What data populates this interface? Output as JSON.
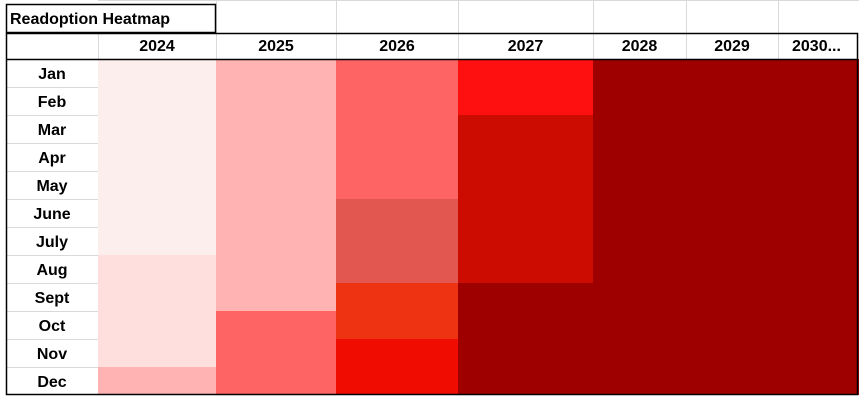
{
  "chart_data": {
    "type": "heatmap",
    "title": "Readoption Heatmap",
    "columns": [
      "2024",
      "2025",
      "2026",
      "2027",
      "2028",
      "2029",
      "2030..."
    ],
    "rows": [
      "Jan",
      "Feb",
      "Mar",
      "Apr",
      "May",
      "June",
      "July",
      "Aug",
      "Sept",
      "Oct",
      "Nov",
      "Dec"
    ],
    "cell_colors": [
      [
        "#fdeeee",
        "#ffb3b3",
        "#ff6464",
        "#ff1010",
        "#9e0000",
        "#9e0000",
        "#9e0000"
      ],
      [
        "#fdeeee",
        "#ffb3b3",
        "#ff6464",
        "#ff1010",
        "#9e0000",
        "#9e0000",
        "#9e0000"
      ],
      [
        "#fdeeee",
        "#ffb3b3",
        "#ff6464",
        "#cc0c00",
        "#9e0000",
        "#9e0000",
        "#9e0000"
      ],
      [
        "#fdeeee",
        "#ffb3b3",
        "#ff6464",
        "#cc0c00",
        "#9e0000",
        "#9e0000",
        "#9e0000"
      ],
      [
        "#fdeeee",
        "#ffb3b3",
        "#ff6464",
        "#cc0c00",
        "#9e0000",
        "#9e0000",
        "#9e0000"
      ],
      [
        "#fdeeee",
        "#ffb3b3",
        "#e25850",
        "#cc0c00",
        "#9e0000",
        "#9e0000",
        "#9e0000"
      ],
      [
        "#fdeeee",
        "#ffb3b3",
        "#e25850",
        "#cc0c00",
        "#9e0000",
        "#9e0000",
        "#9e0000"
      ],
      [
        "#ffdede",
        "#ffb3b3",
        "#e25850",
        "#cc0c00",
        "#9e0000",
        "#9e0000",
        "#9e0000"
      ],
      [
        "#ffdede",
        "#ffb3b3",
        "#ee3312",
        "#9e0000",
        "#9e0000",
        "#9e0000",
        "#9e0000"
      ],
      [
        "#ffdede",
        "#ff6464",
        "#ee3312",
        "#9e0000",
        "#9e0000",
        "#9e0000",
        "#9e0000"
      ],
      [
        "#ffdede",
        "#ff6464",
        "#f00c00",
        "#9e0000",
        "#9e0000",
        "#9e0000",
        "#9e0000"
      ],
      [
        "#ffb3b3",
        "#ff6464",
        "#f00c00",
        "#9e0000",
        "#9e0000",
        "#9e0000",
        "#9e0000"
      ]
    ],
    "grid": true,
    "legend": "none"
  }
}
